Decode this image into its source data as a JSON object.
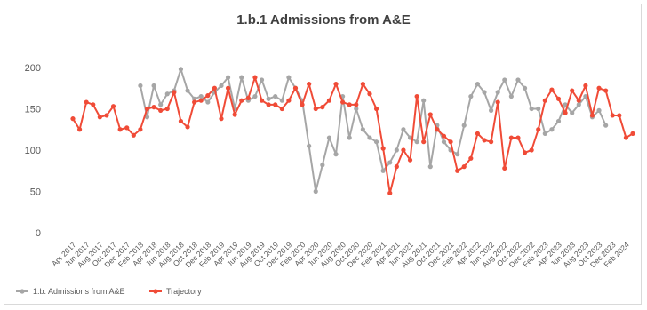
{
  "chart_data": {
    "type": "line",
    "title": "1.b.1 Admissions from A&E",
    "ylim": [
      0,
      200
    ],
    "yticks": [
      0,
      50,
      100,
      150,
      200
    ],
    "x": [
      "Apr 2017",
      "May 2017",
      "Jun 2017",
      "Jul 2017",
      "Aug 2017",
      "Sep 2017",
      "Oct 2017",
      "Nov 2017",
      "Dec 2017",
      "Jan 2018",
      "Feb 2018",
      "Mar 2018",
      "Apr 2018",
      "May 2018",
      "Jun 2018",
      "Jul 2018",
      "Aug 2018",
      "Sep 2018",
      "Oct 2018",
      "Nov 2018",
      "Dec 2018",
      "Jan 2019",
      "Feb 2019",
      "Mar 2019",
      "Apr 2019",
      "May 2019",
      "Jun 2019",
      "Jul 2019",
      "Aug 2019",
      "Sep 2019",
      "Oct 2019",
      "Nov 2019",
      "Dec 2019",
      "Jan 2020",
      "Feb 2020",
      "Mar 2020",
      "Apr 2020",
      "May 2020",
      "Jun 2020",
      "Jul 2020",
      "Aug 2020",
      "Sep 2020",
      "Oct 2020",
      "Nov 2020",
      "Dec 2020",
      "Jan 2021",
      "Feb 2021",
      "Mar 2021",
      "Apr 2021",
      "May 2021",
      "Jun 2021",
      "Jul 2021",
      "Aug 2021",
      "Sep 2021",
      "Oct 2021",
      "Nov 2021",
      "Dec 2021",
      "Jan 2022",
      "Feb 2022",
      "Mar 2022",
      "Apr 2022",
      "May 2022",
      "Jun 2022",
      "Jul 2022",
      "Aug 2022",
      "Sep 2022",
      "Oct 2022",
      "Nov 2022",
      "Dec 2022",
      "Jan 2023",
      "Feb 2023",
      "Mar 2023",
      "Apr 2023",
      "May 2023",
      "Jun 2023",
      "Jul 2023",
      "Aug 2023",
      "Sep 2023",
      "Oct 2023",
      "Nov 2023",
      "Dec 2023",
      "Jan 2024",
      "Feb 2024",
      "Mar 2024"
    ],
    "xtick_labels": [
      "Apr 2017",
      "Jun 2017",
      "Aug 2017",
      "Oct 2017",
      "Dec 2017",
      "Feb 2018",
      "Apr 2018",
      "Jun 2018",
      "Aug 2018",
      "Oct 2018",
      "Dec 2018",
      "Feb 2019",
      "Apr 2019",
      "Jun 2019",
      "Aug 2019",
      "Oct 2019",
      "Dec 2019",
      "Feb 2020",
      "Apr 2020",
      "Jun 2020",
      "Aug 2020",
      "Oct 2020",
      "Dec 2020",
      "Feb 2021",
      "Apr 2021",
      "Jun 2021",
      "Aug 2021",
      "Oct 2021",
      "Dec 2021",
      "Feb 2022",
      "Apr 2022",
      "Jun 2022",
      "Aug 2022",
      "Oct 2022",
      "Dec 2022",
      "Feb 2023",
      "Apr 2023",
      "Jun 2023",
      "Aug 2023",
      "Oct 2023",
      "Dec 2023",
      "Feb 2024"
    ],
    "series": [
      {
        "name": "1.b. Admissions from A&E",
        "color": "#a6a6a6",
        "values": [
          null,
          null,
          null,
          null,
          null,
          null,
          null,
          null,
          null,
          null,
          178,
          140,
          178,
          155,
          168,
          172,
          198,
          172,
          162,
          165,
          158,
          170,
          178,
          188,
          150,
          188,
          160,
          165,
          185,
          162,
          165,
          160,
          188,
          175,
          160,
          105,
          50,
          82,
          115,
          95,
          165,
          115,
          150,
          125,
          115,
          110,
          75,
          85,
          100,
          125,
          115,
          110,
          160,
          80,
          130,
          110,
          100,
          95,
          130,
          165,
          180,
          170,
          148,
          170,
          185,
          165,
          185,
          175,
          150,
          150,
          120,
          125,
          135,
          155,
          145,
          155,
          165,
          140,
          148,
          130,
          null,
          null,
          null,
          null
        ]
      },
      {
        "name": "Trajectory",
        "color": "#f04b37",
        "values": [
          138,
          125,
          158,
          155,
          140,
          142,
          153,
          125,
          127,
          118,
          125,
          150,
          152,
          148,
          150,
          170,
          135,
          128,
          158,
          160,
          166,
          175,
          138,
          175,
          143,
          160,
          163,
          188,
          160,
          155,
          155,
          150,
          160,
          175,
          155,
          180,
          150,
          152,
          160,
          180,
          158,
          155,
          155,
          180,
          168,
          150,
          102,
          48,
          80,
          100,
          88,
          165,
          110,
          143,
          125,
          117,
          110,
          75,
          80,
          90,
          120,
          112,
          110,
          158,
          78,
          115,
          115,
          97,
          100,
          125,
          160,
          173,
          162,
          145,
          172,
          160,
          178,
          142,
          175,
          172,
          142,
          142,
          115,
          120
        ]
      }
    ],
    "legend_position": "bottom-left",
    "grid": false
  }
}
